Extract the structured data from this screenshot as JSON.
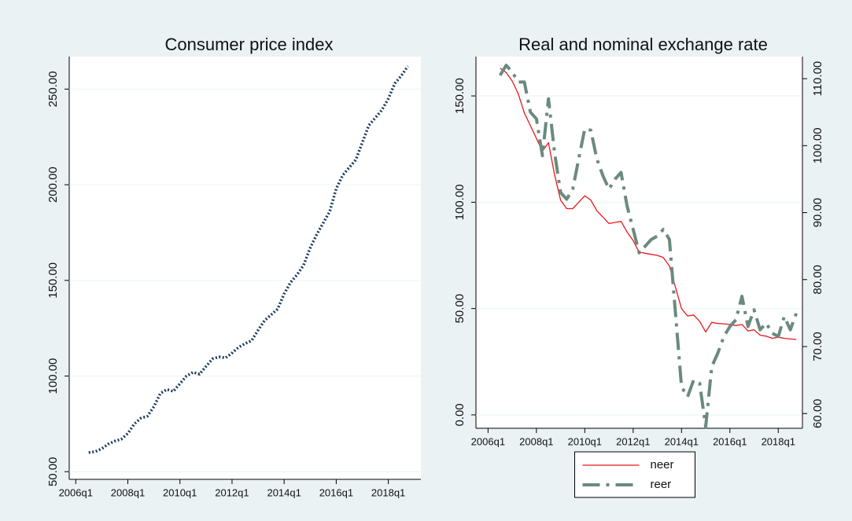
{
  "chart_data": [
    {
      "type": "line",
      "title": "Consumer price index",
      "x": [
        "2006q3",
        "2006q4",
        "2007q1",
        "2007q2",
        "2007q3",
        "2007q4",
        "2008q1",
        "2008q2",
        "2008q3",
        "2008q4",
        "2009q1",
        "2009q2",
        "2009q3",
        "2009q4",
        "2010q1",
        "2010q2",
        "2010q3",
        "2010q4",
        "2011q1",
        "2011q2",
        "2011q3",
        "2011q4",
        "2012q1",
        "2012q2",
        "2012q3",
        "2012q4",
        "2013q1",
        "2013q2",
        "2013q3",
        "2013q4",
        "2014q1",
        "2014q2",
        "2014q3",
        "2014q4",
        "2015q1",
        "2015q2",
        "2015q3",
        "2015q4",
        "2016q1",
        "2016q2",
        "2016q3",
        "2016q4",
        "2017q1",
        "2017q2",
        "2017q3",
        "2017q4",
        "2018q1",
        "2018q2",
        "2018q3",
        "2018q4"
      ],
      "series": [
        {
          "color": "#1a3a5e",
          "line_style": "dotted",
          "values": [
            60,
            60.5,
            62,
            64.5,
            66,
            67,
            70,
            75,
            78,
            79,
            84,
            91,
            93,
            92,
            96,
            100,
            102,
            101,
            105,
            109,
            110,
            109.5,
            112,
            115,
            117,
            118.5,
            124,
            129,
            132,
            135,
            143,
            149,
            153,
            158,
            167,
            174,
            180,
            186,
            198,
            205,
            209,
            213,
            222,
            231,
            235,
            239,
            245,
            253,
            257,
            262
          ]
        }
      ],
      "xlim": [
        "2005q4",
        "2019q2"
      ],
      "xticks": [
        "2006q1",
        "2008q1",
        "2010q1",
        "2012q1",
        "2014q1",
        "2016q1",
        "2018q1"
      ],
      "ylim": [
        46,
        267
      ],
      "yticks": [
        {
          "value": 50,
          "label": "50.00"
        },
        {
          "value": 100,
          "label": "100.00"
        },
        {
          "value": 150,
          "label": "150.00"
        },
        {
          "value": 200,
          "label": "200.00"
        },
        {
          "value": 250,
          "label": "250.00"
        }
      ],
      "grid": true
    },
    {
      "type": "line",
      "title": "Real and nominal exchange rate",
      "x": [
        "2006q3",
        "2006q4",
        "2007q1",
        "2007q2",
        "2007q3",
        "2007q4",
        "2008q1",
        "2008q2",
        "2008q3",
        "2008q4",
        "2009q1",
        "2009q2",
        "2009q3",
        "2009q4",
        "2010q1",
        "2010q2",
        "2010q3",
        "2010q4",
        "2011q1",
        "2011q2",
        "2011q3",
        "2011q4",
        "2012q1",
        "2012q2",
        "2012q3",
        "2012q4",
        "2013q1",
        "2013q2",
        "2013q3",
        "2013q4",
        "2014q1",
        "2014q2",
        "2014q3",
        "2014q4",
        "2015q1",
        "2015q2",
        "2015q3",
        "2015q4",
        "2016q1",
        "2016q2",
        "2016q3",
        "2016q4",
        "2017q1",
        "2017q2",
        "2017q3",
        "2017q4",
        "2018q1",
        "2018q2",
        "2018q3",
        "2018q4"
      ],
      "series": [
        {
          "name": "neer",
          "color": "#e8181c",
          "line_style": "solid",
          "values": [
            163,
            161,
            157,
            151,
            142,
            136,
            130,
            124,
            128,
            113,
            101,
            97,
            97,
            100,
            103,
            101,
            96,
            93,
            90,
            90.5,
            91,
            86,
            82,
            76.5,
            76,
            75.5,
            75,
            74,
            70,
            60,
            50,
            46.5,
            47,
            44,
            39,
            43.5,
            43,
            42.8,
            42.5,
            42,
            42.5,
            39.5,
            40,
            37.5,
            37,
            36,
            36.5,
            36,
            35.7,
            35.5
          ]
        },
        {
          "name": "reer",
          "color": "#6b8a7e",
          "line_style": "dashdot",
          "axis": "y2",
          "values": [
            110.5,
            112,
            111,
            109.5,
            109.5,
            105,
            104,
            98.5,
            107,
            99,
            93,
            92,
            93.5,
            98,
            102.5,
            102.3,
            98,
            95.5,
            93.5,
            95,
            96,
            91,
            87.5,
            84,
            85,
            86,
            86.5,
            87.5,
            86,
            75,
            64,
            62.5,
            65,
            64.5,
            58,
            67,
            69,
            71.5,
            73,
            74,
            77.5,
            73,
            75.5,
            72.5,
            73.5,
            72,
            71.5,
            74.5,
            72.5,
            75
          ]
        }
      ],
      "xlim": [
        "2005q3",
        "2019q1"
      ],
      "xticks": [
        "2006q1",
        "2008q1",
        "2010q1",
        "2012q1",
        "2014q1",
        "2016q1",
        "2018q1"
      ],
      "ylim": [
        -6.3,
        168.5
      ],
      "yticks": [
        {
          "value": 0,
          "label": "0.00"
        },
        {
          "value": 50,
          "label": "50.00"
        },
        {
          "value": 100,
          "label": "100.00"
        },
        {
          "value": 150,
          "label": "150.00"
        }
      ],
      "y2lim": [
        57.8,
        113.3
      ],
      "y2ticks": [
        {
          "value": 60,
          "label": "60.00"
        },
        {
          "value": 70,
          "label": "70.00"
        },
        {
          "value": 80,
          "label": "80.00"
        },
        {
          "value": 90,
          "label": "90.00"
        },
        {
          "value": 100,
          "label": "100.00"
        },
        {
          "value": 110,
          "label": "110.00"
        }
      ],
      "grid": true,
      "legend": "bottom"
    }
  ]
}
